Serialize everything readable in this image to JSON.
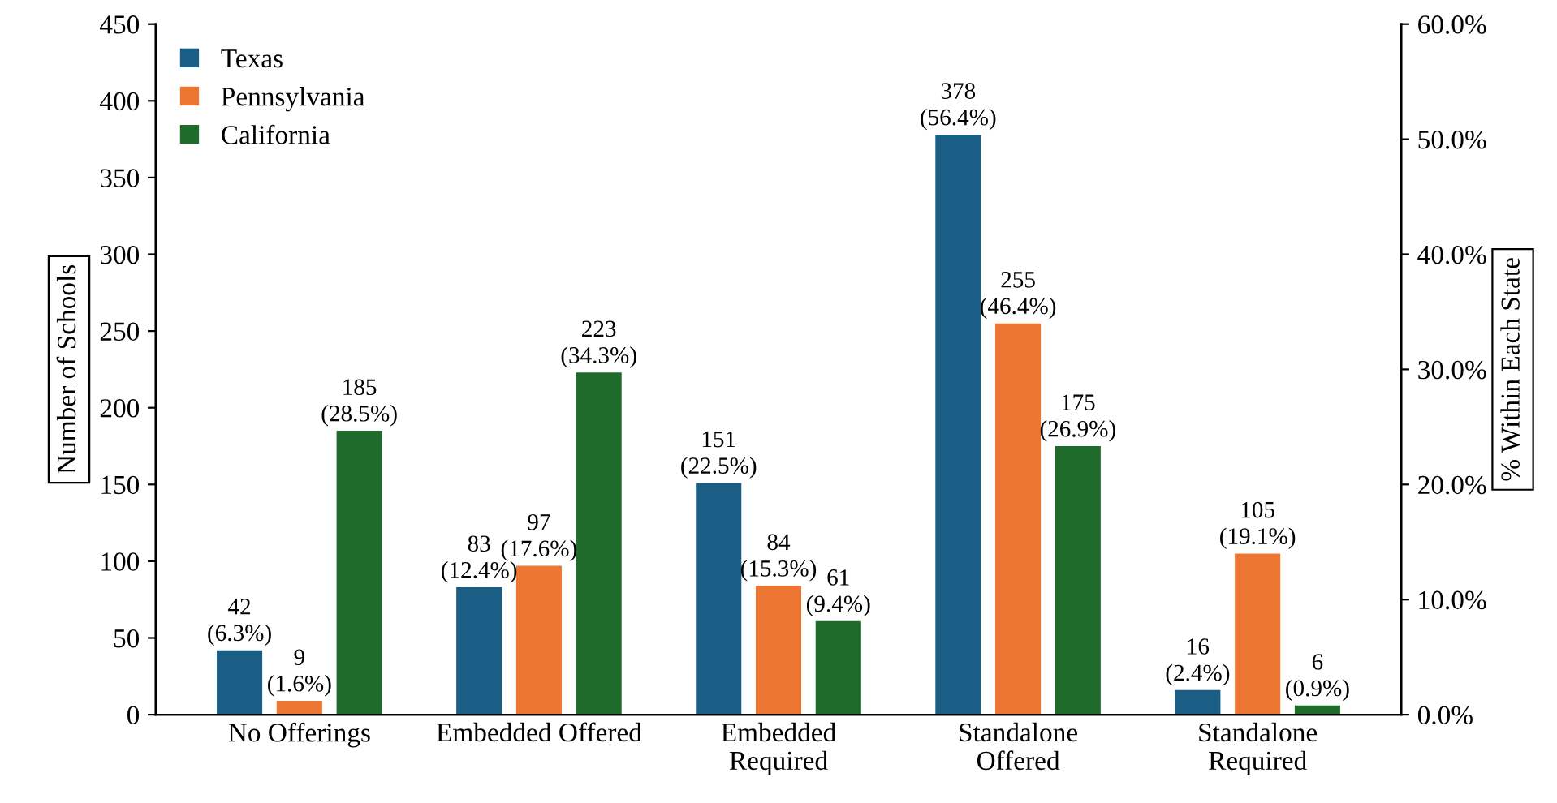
{
  "chart_data": {
    "type": "bar",
    "ylabel": "Number of Schools",
    "y2label": "% Within Each State",
    "categories": [
      "No Offerings",
      "Embedded Offered",
      "Embedded\nRequired",
      "Standalone\nOffered",
      "Standalone\nRequired"
    ],
    "series": [
      {
        "name": "Texas",
        "color": "#1b5e85",
        "values": [
          42,
          83,
          151,
          378,
          16
        ],
        "value_labels": [
          "42\n(6.3%)",
          "83\n(12.4%)",
          "151\n(22.5%)",
          "378\n(56.4%)",
          "16\n(2.4%)"
        ]
      },
      {
        "name": "Pennsylvania",
        "color": "#ed7632",
        "values": [
          9,
          97,
          84,
          255,
          105
        ],
        "value_labels": [
          "9\n(1.6%)",
          "97\n(17.6%)",
          "84\n(15.3%)",
          "255\n(46.4%)",
          "105\n(19.1%)"
        ]
      },
      {
        "name": "California",
        "color": "#1f6b2b",
        "values": [
          185,
          223,
          61,
          175,
          6
        ],
        "value_labels": [
          "185\n(28.5%)",
          "223\n(34.3%)",
          "61\n(9.4%)",
          "175\n(26.9%)",
          "6\n(0.9%)"
        ]
      }
    ],
    "ylim": [
      0,
      450
    ],
    "yticks": [
      0,
      50,
      100,
      150,
      200,
      250,
      300,
      350,
      400,
      450
    ],
    "y2lim": [
      0,
      60
    ],
    "y2ticks": [
      {
        "value": 0,
        "label": "0.0%"
      },
      {
        "value": 10,
        "label": "10.0%"
      },
      {
        "value": 20,
        "label": "20.0%"
      },
      {
        "value": 30,
        "label": "30.0%"
      },
      {
        "value": 40,
        "label": "40.0%"
      },
      {
        "value": 50,
        "label": "50.0%"
      },
      {
        "value": 60,
        "label": "60.0%"
      }
    ],
    "legend": "top left",
    "grid": false
  }
}
